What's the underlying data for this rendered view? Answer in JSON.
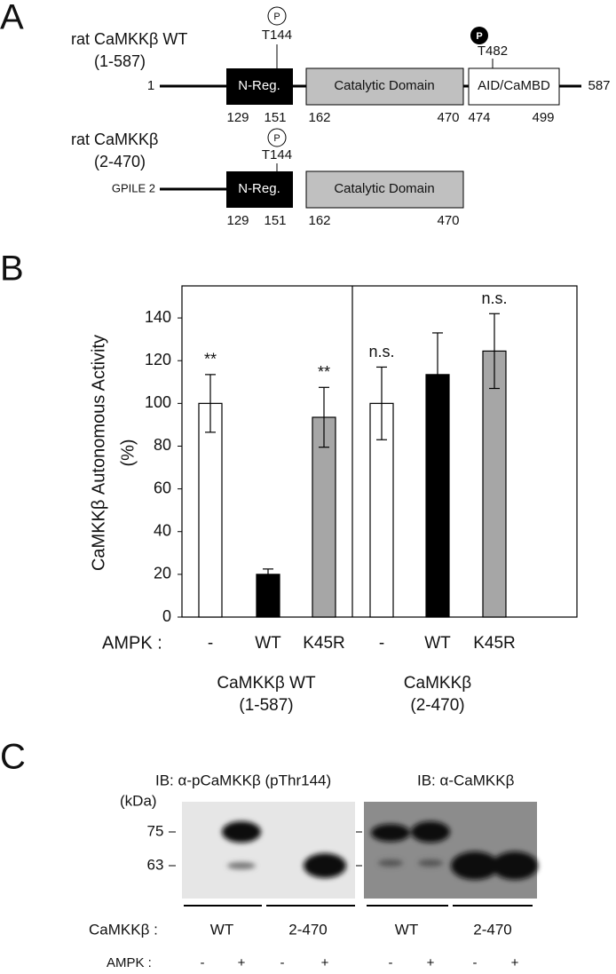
{
  "panel_a": {
    "label": "A",
    "constructs": [
      {
        "name": "rat CaMKKβ WT",
        "range": "(1-587)",
        "start": "1",
        "end": "587",
        "domains": [
          "N-Reg.",
          "Catalytic Domain",
          "AID/CaMBD"
        ],
        "positions": [
          "129",
          "151",
          "162",
          "470",
          "474",
          "499"
        ],
        "sites": [
          {
            "mark": "P",
            "label": "T144"
          },
          {
            "mark": "P",
            "label": "T482"
          }
        ]
      },
      {
        "name": "rat CaMKKβ",
        "range": "(2-470)",
        "start": "GPILE 2",
        "domains": [
          "N-Reg.",
          "Catalytic Domain"
        ],
        "positions": [
          "129",
          "151",
          "162",
          "470"
        ],
        "sites": [
          {
            "mark": "P",
            "label": "T144"
          }
        ]
      }
    ]
  },
  "chart_data": {
    "type": "bar",
    "panel_label": "B",
    "y_label": [
      "CaMKKβ Autonomous Activity",
      "(%)"
    ],
    "x_label": "AMPK :",
    "categories": [
      "-",
      "WT",
      "K45R",
      "-",
      "WT",
      "K45R"
    ],
    "values": [
      100,
      20,
      93.5,
      100,
      113.5,
      124.5
    ],
    "errors": [
      13.5,
      2.5,
      14,
      17,
      19.5,
      17.5
    ],
    "colors": [
      "#ffffff",
      "#000000",
      "#a6a6a6",
      "#ffffff",
      "#000000",
      "#a6a6a6"
    ],
    "annotations": [
      "**",
      null,
      "**",
      "n.s.",
      null,
      "n.s."
    ],
    "groups": [
      {
        "label": [
          "CaMKKβ WT",
          "(1-587)"
        ]
      },
      {
        "label": [
          "CaMKKβ",
          "(2-470)"
        ]
      }
    ],
    "ylim": [
      0,
      155
    ],
    "yticks": [
      0,
      20,
      40,
      60,
      80,
      100,
      120,
      140
    ]
  },
  "panel_c": {
    "label": "C",
    "antibodies": [
      "IB: α-pCaMKKβ (pThr144)",
      "IB: α-CaMKKβ"
    ],
    "unit": "(kDa)",
    "markers": [
      "75",
      "63"
    ],
    "row_labels": [
      "CaMKKβ :",
      "AMPK :"
    ],
    "constructs": [
      "WT",
      "2-470",
      "WT",
      "2-470"
    ],
    "ampk": [
      "-",
      "+",
      "-",
      "+",
      "-",
      "+",
      "-",
      "+"
    ]
  }
}
